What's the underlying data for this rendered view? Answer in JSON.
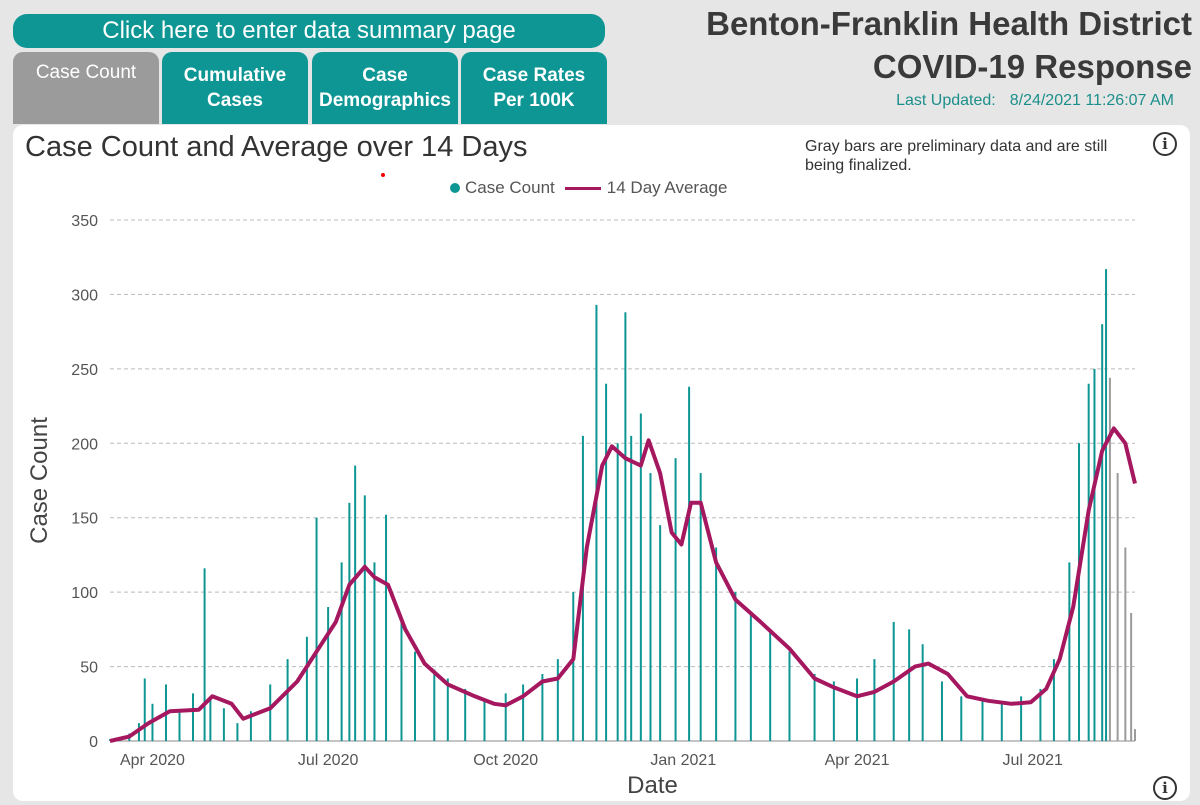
{
  "nav": {
    "summary_button": "Click here to enter data summary page",
    "tabs": [
      {
        "label": "Case Count"
      },
      {
        "label": "Cumulative\nCases"
      },
      {
        "label": "Case\nDemographics"
      },
      {
        "label": "Case Rates\nPer 100K"
      }
    ]
  },
  "header": {
    "title_line1": "Benton-Franklin Health District",
    "title_line2": "COVID-19 Response",
    "updated_label": "Last Updated:",
    "updated_value": "8/24/2021 11:26:07 AM"
  },
  "chart_note": "Gray bars are preliminary data and are still being finalized.",
  "colors": {
    "accent": "#0e9695",
    "bar_final": "#0e9695",
    "bar_preliminary": "#9b9b9b",
    "avg_line": "#a5175f"
  },
  "chart_data": {
    "type": "bar",
    "title": "Case Count and Average over 14 Days",
    "xlabel": "Date",
    "ylabel": "Case Count",
    "ylim": [
      0,
      350
    ],
    "yticks": [
      "0",
      "50",
      "100",
      "150",
      "200",
      "250",
      "300",
      "350"
    ],
    "xticks": [
      {
        "date": "2020-04-01",
        "label": "Apr 2020"
      },
      {
        "date": "2020-07-01",
        "label": "Jul 2020"
      },
      {
        "date": "2020-10-01",
        "label": "Oct 2020"
      },
      {
        "date": "2021-01-01",
        "label": "Jan 2021"
      },
      {
        "date": "2021-04-01",
        "label": "Apr 2021"
      },
      {
        "date": "2021-07-01",
        "label": "Jul 2021"
      }
    ],
    "x_range": [
      "2020-03-10",
      "2021-08-23"
    ],
    "grid": "horizontal dashed",
    "legend_position": "top",
    "series": [
      {
        "name": "Case Count",
        "kind": "bar",
        "preliminary_from": "2021-08-10",
        "points": [
          [
            "2020-03-10",
            1
          ],
          [
            "2020-03-20",
            5
          ],
          [
            "2020-03-25",
            12
          ],
          [
            "2020-03-28",
            42
          ],
          [
            "2020-04-01",
            25
          ],
          [
            "2020-04-08",
            38
          ],
          [
            "2020-04-15",
            20
          ],
          [
            "2020-04-22",
            32
          ],
          [
            "2020-04-28",
            116
          ],
          [
            "2020-05-01",
            28
          ],
          [
            "2020-05-08",
            22
          ],
          [
            "2020-05-15",
            12
          ],
          [
            "2020-05-22",
            20
          ],
          [
            "2020-06-01",
            38
          ],
          [
            "2020-06-10",
            55
          ],
          [
            "2020-06-20",
            70
          ],
          [
            "2020-06-25",
            150
          ],
          [
            "2020-07-01",
            90
          ],
          [
            "2020-07-08",
            120
          ],
          [
            "2020-07-12",
            160
          ],
          [
            "2020-07-15",
            185
          ],
          [
            "2020-07-20",
            165
          ],
          [
            "2020-07-25",
            120
          ],
          [
            "2020-07-31",
            152
          ],
          [
            "2020-08-08",
            80
          ],
          [
            "2020-08-15",
            60
          ],
          [
            "2020-08-25",
            48
          ],
          [
            "2020-09-01",
            42
          ],
          [
            "2020-09-10",
            35
          ],
          [
            "2020-09-20",
            28
          ],
          [
            "2020-10-01",
            32
          ],
          [
            "2020-10-10",
            38
          ],
          [
            "2020-10-20",
            45
          ],
          [
            "2020-10-28",
            55
          ],
          [
            "2020-11-05",
            100
          ],
          [
            "2020-11-10",
            205
          ],
          [
            "2020-11-17",
            293
          ],
          [
            "2020-11-22",
            240
          ],
          [
            "2020-11-28",
            200
          ],
          [
            "2020-12-02",
            288
          ],
          [
            "2020-12-05",
            205
          ],
          [
            "2020-12-10",
            220
          ],
          [
            "2020-12-15",
            180
          ],
          [
            "2020-12-20",
            145
          ],
          [
            "2020-12-28",
            190
          ],
          [
            "2021-01-04",
            238
          ],
          [
            "2021-01-10",
            180
          ],
          [
            "2021-01-18",
            130
          ],
          [
            "2021-01-28",
            100
          ],
          [
            "2021-02-05",
            85
          ],
          [
            "2021-02-15",
            75
          ],
          [
            "2021-02-25",
            60
          ],
          [
            "2021-03-10",
            45
          ],
          [
            "2021-03-20",
            40
          ],
          [
            "2021-04-01",
            42
          ],
          [
            "2021-04-10",
            55
          ],
          [
            "2021-04-20",
            80
          ],
          [
            "2021-04-28",
            75
          ],
          [
            "2021-05-05",
            65
          ],
          [
            "2021-05-15",
            40
          ],
          [
            "2021-05-25",
            30
          ],
          [
            "2021-06-05",
            28
          ],
          [
            "2021-06-15",
            25
          ],
          [
            "2021-06-25",
            30
          ],
          [
            "2021-07-05",
            35
          ],
          [
            "2021-07-12",
            55
          ],
          [
            "2021-07-20",
            120
          ],
          [
            "2021-07-25",
            200
          ],
          [
            "2021-07-30",
            240
          ],
          [
            "2021-08-02",
            250
          ],
          [
            "2021-08-06",
            280
          ],
          [
            "2021-08-08",
            317
          ],
          [
            "2021-08-10",
            244
          ],
          [
            "2021-08-14",
            180
          ],
          [
            "2021-08-18",
            130
          ],
          [
            "2021-08-21",
            86
          ],
          [
            "2021-08-23",
            8
          ]
        ]
      },
      {
        "name": "14 Day Average",
        "kind": "line",
        "points": [
          [
            "2020-03-10",
            0
          ],
          [
            "2020-03-20",
            3
          ],
          [
            "2020-03-30",
            12
          ],
          [
            "2020-04-10",
            20
          ],
          [
            "2020-04-25",
            21
          ],
          [
            "2020-05-02",
            30
          ],
          [
            "2020-05-12",
            25
          ],
          [
            "2020-05-18",
            15
          ],
          [
            "2020-06-01",
            22
          ],
          [
            "2020-06-15",
            40
          ],
          [
            "2020-06-25",
            60
          ],
          [
            "2020-07-05",
            80
          ],
          [
            "2020-07-12",
            105
          ],
          [
            "2020-07-20",
            117
          ],
          [
            "2020-07-25",
            110
          ],
          [
            "2020-08-01",
            105
          ],
          [
            "2020-08-10",
            75
          ],
          [
            "2020-08-20",
            52
          ],
          [
            "2020-09-01",
            38
          ],
          [
            "2020-09-15",
            30
          ],
          [
            "2020-09-25",
            25
          ],
          [
            "2020-10-01",
            24
          ],
          [
            "2020-10-10",
            30
          ],
          [
            "2020-10-20",
            40
          ],
          [
            "2020-10-28",
            42
          ],
          [
            "2020-11-05",
            55
          ],
          [
            "2020-11-12",
            130
          ],
          [
            "2020-11-20",
            185
          ],
          [
            "2020-11-25",
            198
          ],
          [
            "2020-12-02",
            190
          ],
          [
            "2020-12-10",
            185
          ],
          [
            "2020-12-14",
            202
          ],
          [
            "2020-12-20",
            180
          ],
          [
            "2020-12-26",
            140
          ],
          [
            "2020-12-31",
            132
          ],
          [
            "2021-01-05",
            160
          ],
          [
            "2021-01-10",
            160
          ],
          [
            "2021-01-18",
            120
          ],
          [
            "2021-01-28",
            95
          ],
          [
            "2021-02-10",
            80
          ],
          [
            "2021-02-25",
            62
          ],
          [
            "2021-03-10",
            42
          ],
          [
            "2021-03-20",
            36
          ],
          [
            "2021-04-01",
            30
          ],
          [
            "2021-04-10",
            33
          ],
          [
            "2021-04-20",
            40
          ],
          [
            "2021-05-01",
            50
          ],
          [
            "2021-05-08",
            52
          ],
          [
            "2021-05-18",
            45
          ],
          [
            "2021-05-28",
            30
          ],
          [
            "2021-06-08",
            27
          ],
          [
            "2021-06-20",
            25
          ],
          [
            "2021-06-30",
            26
          ],
          [
            "2021-07-08",
            35
          ],
          [
            "2021-07-15",
            55
          ],
          [
            "2021-07-22",
            90
          ],
          [
            "2021-07-30",
            155
          ],
          [
            "2021-08-06",
            195
          ],
          [
            "2021-08-12",
            210
          ],
          [
            "2021-08-18",
            200
          ],
          [
            "2021-08-23",
            173
          ]
        ]
      }
    ]
  }
}
